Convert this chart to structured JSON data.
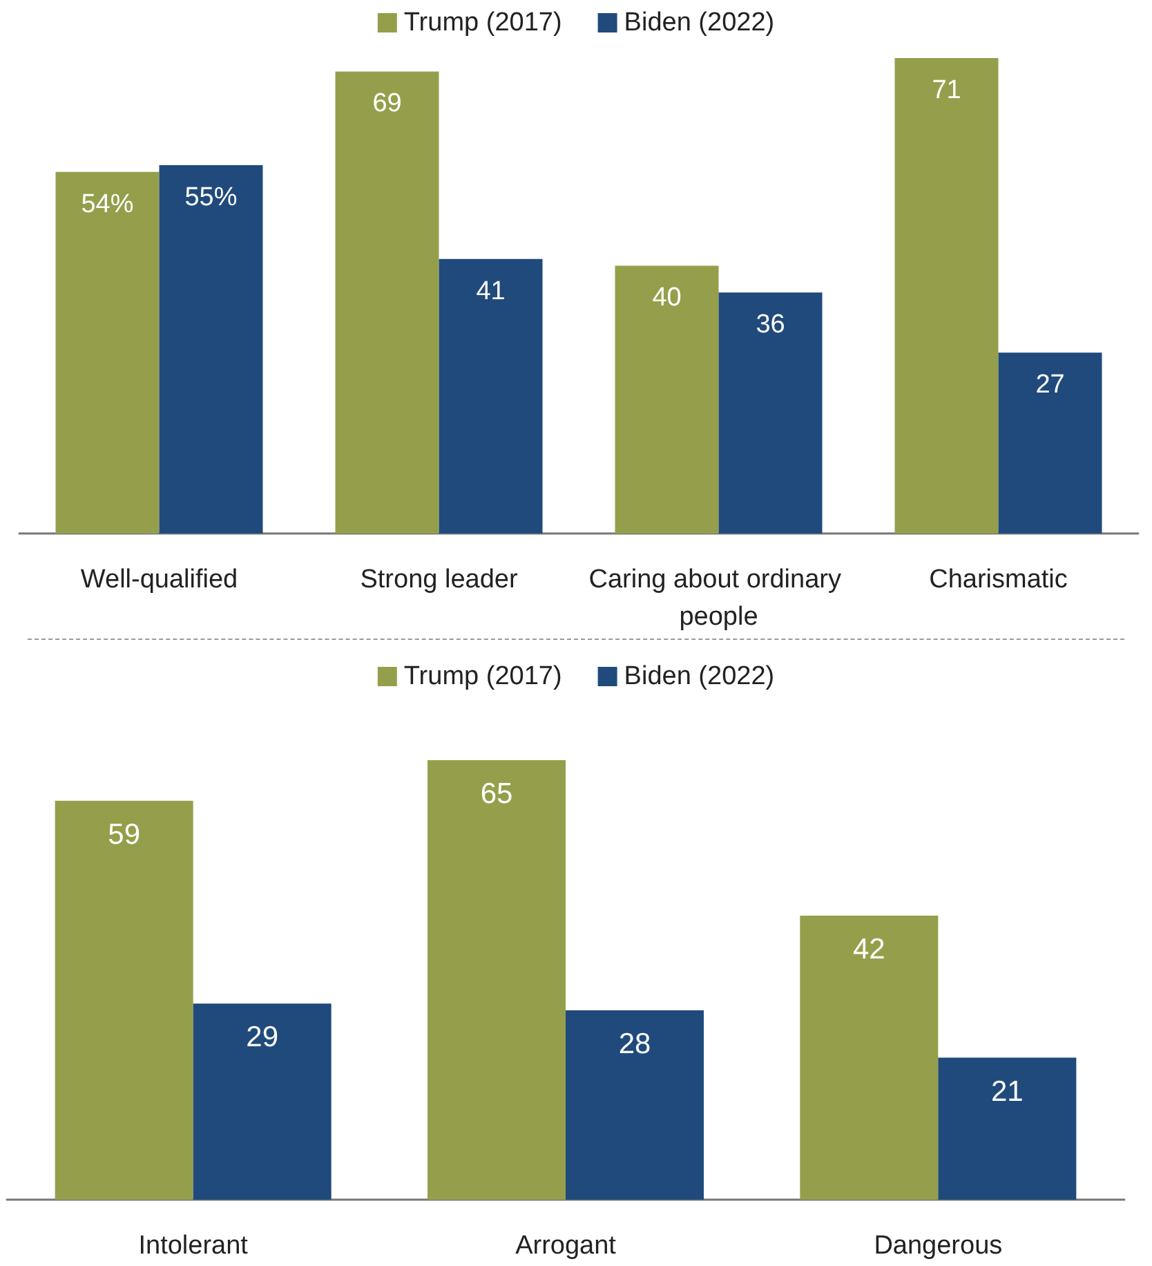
{
  "chart_data": [
    {
      "type": "bar",
      "categories": [
        "Well-qualified",
        "Strong leader",
        "Caring about ordinary people",
        "Charismatic"
      ],
      "legend": "top",
      "series": [
        {
          "name": "Trump (2017)",
          "color": "#959f4b",
          "values": [
            54,
            69,
            40,
            71
          ],
          "value_labels": [
            "54%",
            "69",
            "40",
            "71"
          ]
        },
        {
          "name": "Biden (2022)",
          "color": "#204a7c",
          "values": [
            55,
            41,
            36,
            27
          ],
          "value_labels": [
            "55%",
            "41",
            "36",
            "27"
          ]
        }
      ]
    },
    {
      "type": "bar",
      "categories": [
        "Intolerant",
        "Arrogant",
        "Dangerous"
      ],
      "legend": "top",
      "data_labels": true,
      "series": [
        {
          "name": "Trump (2017)",
          "color": "#959f4b",
          "values": [
            59,
            65,
            42
          ]
        },
        {
          "name": "Biden (2022)",
          "color": "#204a7c",
          "values": [
            29,
            28,
            21
          ]
        }
      ]
    }
  ]
}
